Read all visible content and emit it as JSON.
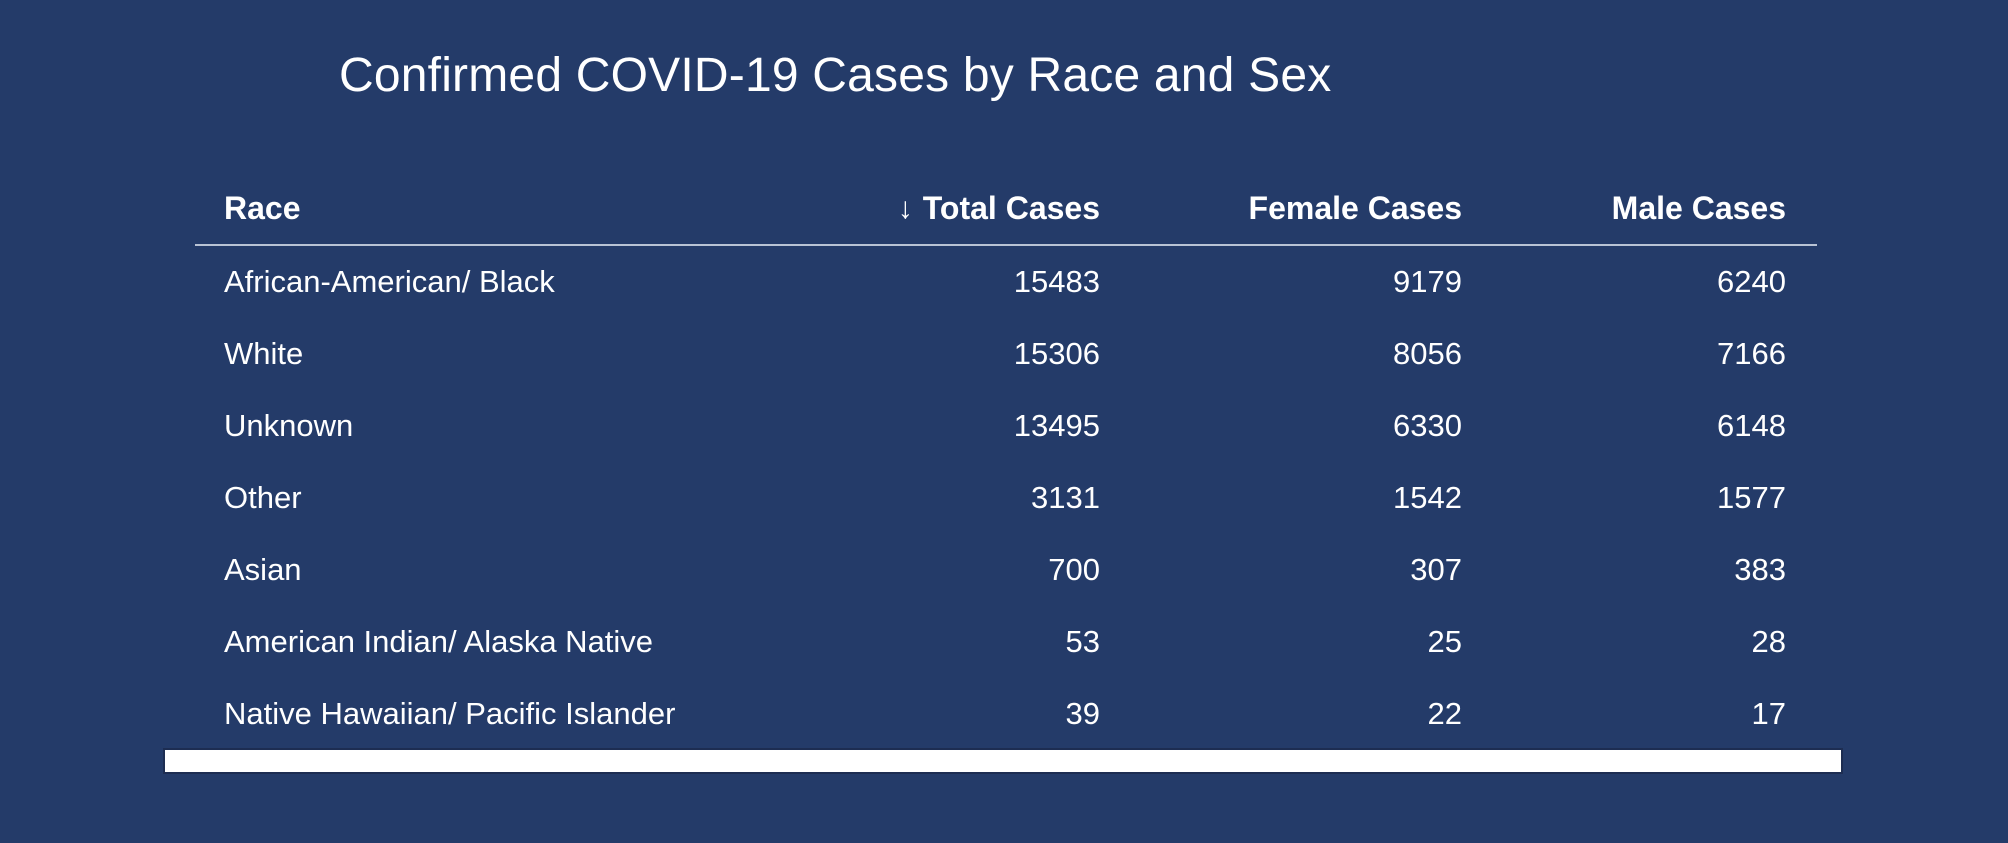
{
  "colors": {
    "background": "#243b69",
    "text": "#ffffff",
    "header_divider": "#b9c3d5",
    "scrollbar": "#ffffff"
  },
  "icons": {
    "sort_descending": "↓"
  },
  "chart_data": {
    "type": "table",
    "title": "Confirmed COVID-19 Cases by Race and Sex",
    "columns": [
      "Race",
      "Total Cases",
      "Female Cases",
      "Male Cases"
    ],
    "column_alignments": [
      "left",
      "right",
      "right",
      "right"
    ],
    "sort": {
      "column": "Total Cases",
      "direction": "descending"
    },
    "rows": [
      [
        "African-American/ Black",
        15483,
        9179,
        6240
      ],
      [
        "White",
        15306,
        8056,
        7166
      ],
      [
        "Unknown",
        13495,
        6330,
        6148
      ],
      [
        "Other",
        3131,
        1542,
        1577
      ],
      [
        "Asian",
        700,
        307,
        383
      ],
      [
        "American Indian/ Alaska Native",
        53,
        25,
        28
      ],
      [
        "Native Hawaiian/ Pacific Islander",
        39,
        22,
        17
      ]
    ]
  }
}
